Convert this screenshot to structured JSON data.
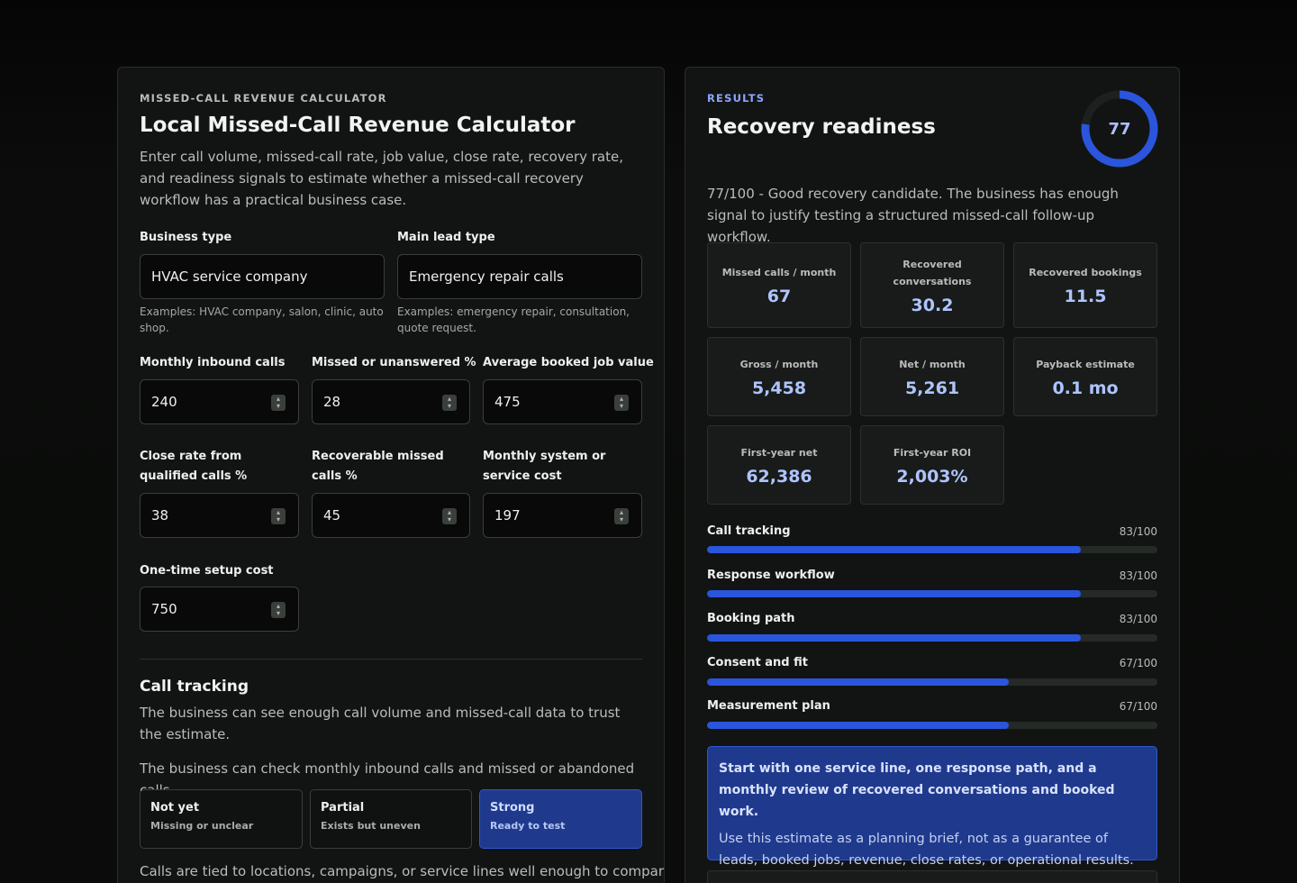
{
  "calculator": {
    "eyebrow": "MISSED-CALL REVENUE CALCULATOR",
    "title": "Local Missed-Call Revenue Calculator",
    "intro": "Enter call volume, missed-call rate, job value, close rate, recovery rate, and readiness signals to estimate whether a missed-call recovery workflow has a practical business case.",
    "business_type": {
      "label": "Business type",
      "value": "HVAC service company",
      "hint": "Examples: HVAC company, salon, clinic, auto shop."
    },
    "lead_type": {
      "label": "Main lead type",
      "value": "Emergency repair calls",
      "hint": "Examples: emergency repair, consultation, quote request."
    },
    "monthly_calls": {
      "label": "Monthly inbound calls",
      "value": "240"
    },
    "missed_pct": {
      "label": "Missed or unanswered %",
      "value": "28"
    },
    "job_value": {
      "label": "Average booked job value",
      "value": "475"
    },
    "close_rate": {
      "label": "Close rate from qualified calls %",
      "value": "38"
    },
    "recoverable": {
      "label": "Recoverable missed calls %",
      "value": "45"
    },
    "system_cost": {
      "label": "Monthly system or service cost",
      "value": "197"
    },
    "setup_cost": {
      "label": "One-time setup cost",
      "value": "750"
    }
  },
  "call_tracking_section": {
    "title": "Call tracking",
    "description": "The business can see enough call volume and missed-call data to trust the estimate.",
    "question1": "The business can check monthly inbound calls and missed or abandoned calls.",
    "options": [
      {
        "title": "Not yet",
        "sub": "Missing or unclear",
        "selected": false
      },
      {
        "title": "Partial",
        "sub": "Exists but uneven",
        "selected": false
      },
      {
        "title": "Strong",
        "sub": "Ready to test",
        "selected": true
      }
    ],
    "question2": "Calls are tied to locations, campaigns, or service lines well enough to compare"
  },
  "results": {
    "eyebrow": "RESULTS",
    "title": "Recovery readiness",
    "score": 77,
    "summary": "77/100 - Good recovery candidate. The business has enough signal to justify testing a structured missed-call follow-up workflow.",
    "metrics": [
      {
        "label": "Missed calls / month",
        "value": "67"
      },
      {
        "label": "Recovered conversations",
        "value": "30.2"
      },
      {
        "label": "Recovered bookings",
        "value": "11.5"
      },
      {
        "label": "Gross / month",
        "value": "5,458"
      },
      {
        "label": "Net / month",
        "value": "5,261"
      },
      {
        "label": "Payback estimate",
        "value": "0.1 mo"
      },
      {
        "label": "First-year net",
        "value": "62,386"
      },
      {
        "label": "First-year ROI",
        "value": "2,003%"
      }
    ],
    "bars": [
      {
        "label": "Call tracking",
        "score_text": "83/100",
        "value": 83
      },
      {
        "label": "Response workflow",
        "score_text": "83/100",
        "value": 83
      },
      {
        "label": "Booking path",
        "score_text": "83/100",
        "value": 83
      },
      {
        "label": "Consent and fit",
        "score_text": "67/100",
        "value": 67
      },
      {
        "label": "Measurement plan",
        "score_text": "67/100",
        "value": 67
      }
    ],
    "callout": {
      "title": "Start with one service line, one response path, and a monthly review of recovered conversations and booked work.",
      "body": "Use this estimate as a planning brief, not as a guarantee of leads, booked jobs, revenue, close rates, or operational results."
    }
  },
  "colors": {
    "accent": "#2a55dc",
    "accent_panel": "#1f3a8c",
    "background": "#0a0b0a",
    "panel": "#121413"
  }
}
